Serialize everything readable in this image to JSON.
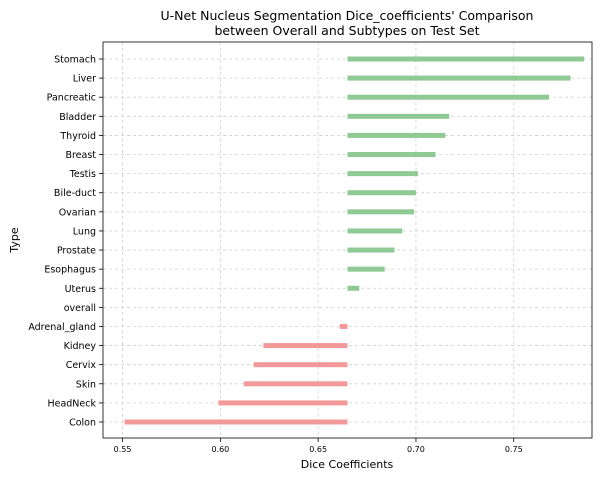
{
  "chart_data": {
    "type": "bar",
    "orientation": "horizontal",
    "title_line1": "U-Net Nucleus Segmentation Dice_coefficients' Comparison",
    "title_line2": "between Overall and Subtypes on Test Set",
    "xlabel": "Dice Coefficients",
    "ylabel": "Type",
    "baseline": 0.665,
    "xlim": [
      0.54,
      0.79
    ],
    "xticks": [
      0.55,
      0.6,
      0.65,
      0.7,
      0.75
    ],
    "xtick_labels": [
      "0.55",
      "0.60",
      "0.65",
      "0.70",
      "0.75"
    ],
    "grid": true,
    "colors": {
      "above": "#8fc994",
      "below": "#f4999a"
    },
    "categories": [
      "Colon",
      "HeadNeck",
      "Skin",
      "Cervix",
      "Kidney",
      "Adrenal_gland",
      "overall",
      "Uterus",
      "Esophagus",
      "Prostate",
      "Lung",
      "Ovarian",
      "Bile-duct",
      "Testis",
      "Breast",
      "Thyroid",
      "Bladder",
      "Pancreatic",
      "Liver",
      "Stomach"
    ],
    "values": [
      0.551,
      0.599,
      0.612,
      0.617,
      0.622,
      0.661,
      0.665,
      0.671,
      0.684,
      0.689,
      0.693,
      0.699,
      0.7,
      0.701,
      0.71,
      0.715,
      0.717,
      0.768,
      0.779,
      0.786
    ]
  }
}
